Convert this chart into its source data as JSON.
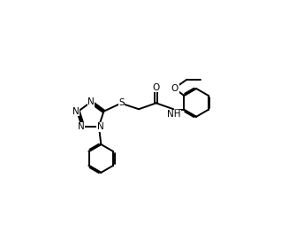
{
  "background_color": "#ffffff",
  "line_color": "#000000",
  "line_width": 1.4,
  "font_size": 7.5,
  "figsize": [
    3.18,
    2.8
  ],
  "dpi": 100,
  "xlim": [
    0,
    10
  ],
  "ylim": [
    0,
    8.8
  ]
}
